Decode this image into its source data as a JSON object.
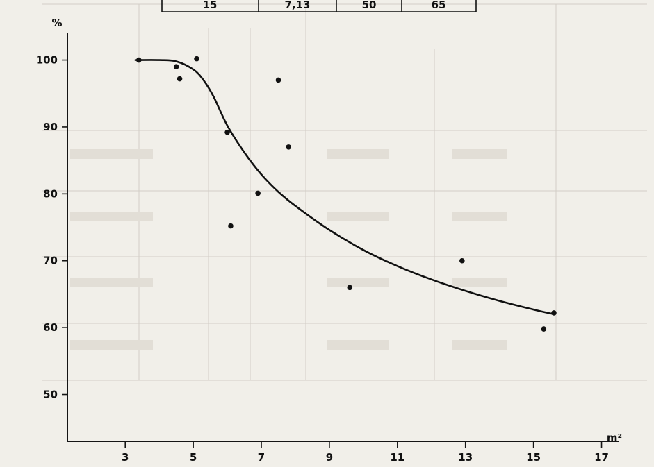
{
  "chart_data": {
    "type": "scatter",
    "title": "",
    "xlabel": "m²",
    "ylabel": "%",
    "xlim": [
      1.3,
      17.5
    ],
    "ylim": [
      43,
      104
    ],
    "x_ticks": [
      3,
      5,
      7,
      9,
      11,
      13,
      15,
      17
    ],
    "y_ticks": [
      50,
      60,
      70,
      80,
      90,
      100
    ],
    "grid": false,
    "legend": "none",
    "top_labels": [
      "15",
      "7,13",
      "50",
      "65"
    ],
    "points": [
      {
        "x": 3.4,
        "y": 100.0
      },
      {
        "x": 4.5,
        "y": 99.0
      },
      {
        "x": 4.6,
        "y": 97.2
      },
      {
        "x": 5.1,
        "y": 100.2
      },
      {
        "x": 6.0,
        "y": 89.2
      },
      {
        "x": 6.1,
        "y": 75.2
      },
      {
        "x": 6.9,
        "y": 80.1
      },
      {
        "x": 7.5,
        "y": 97.0
      },
      {
        "x": 7.8,
        "y": 87.0
      },
      {
        "x": 9.6,
        "y": 66.0
      },
      {
        "x": 12.9,
        "y": 70.0
      },
      {
        "x": 15.3,
        "y": 59.8
      },
      {
        "x": 15.6,
        "y": 62.2
      }
    ],
    "fit_curve": {
      "x": [
        3.3,
        4.0,
        4.5,
        5.0,
        5.3,
        5.6,
        6.0,
        6.5,
        7.0,
        7.5,
        8.0,
        9.0,
        10.0,
        11.0,
        12.0,
        13.0,
        14.0,
        15.0,
        15.6
      ],
      "y": [
        100.0,
        100.0,
        99.8,
        98.6,
        97.0,
        94.5,
        90.2,
        86.2,
        82.9,
        80.3,
        78.2,
        74.6,
        71.6,
        69.2,
        67.2,
        65.5,
        64.0,
        62.7,
        62.0
      ]
    }
  }
}
